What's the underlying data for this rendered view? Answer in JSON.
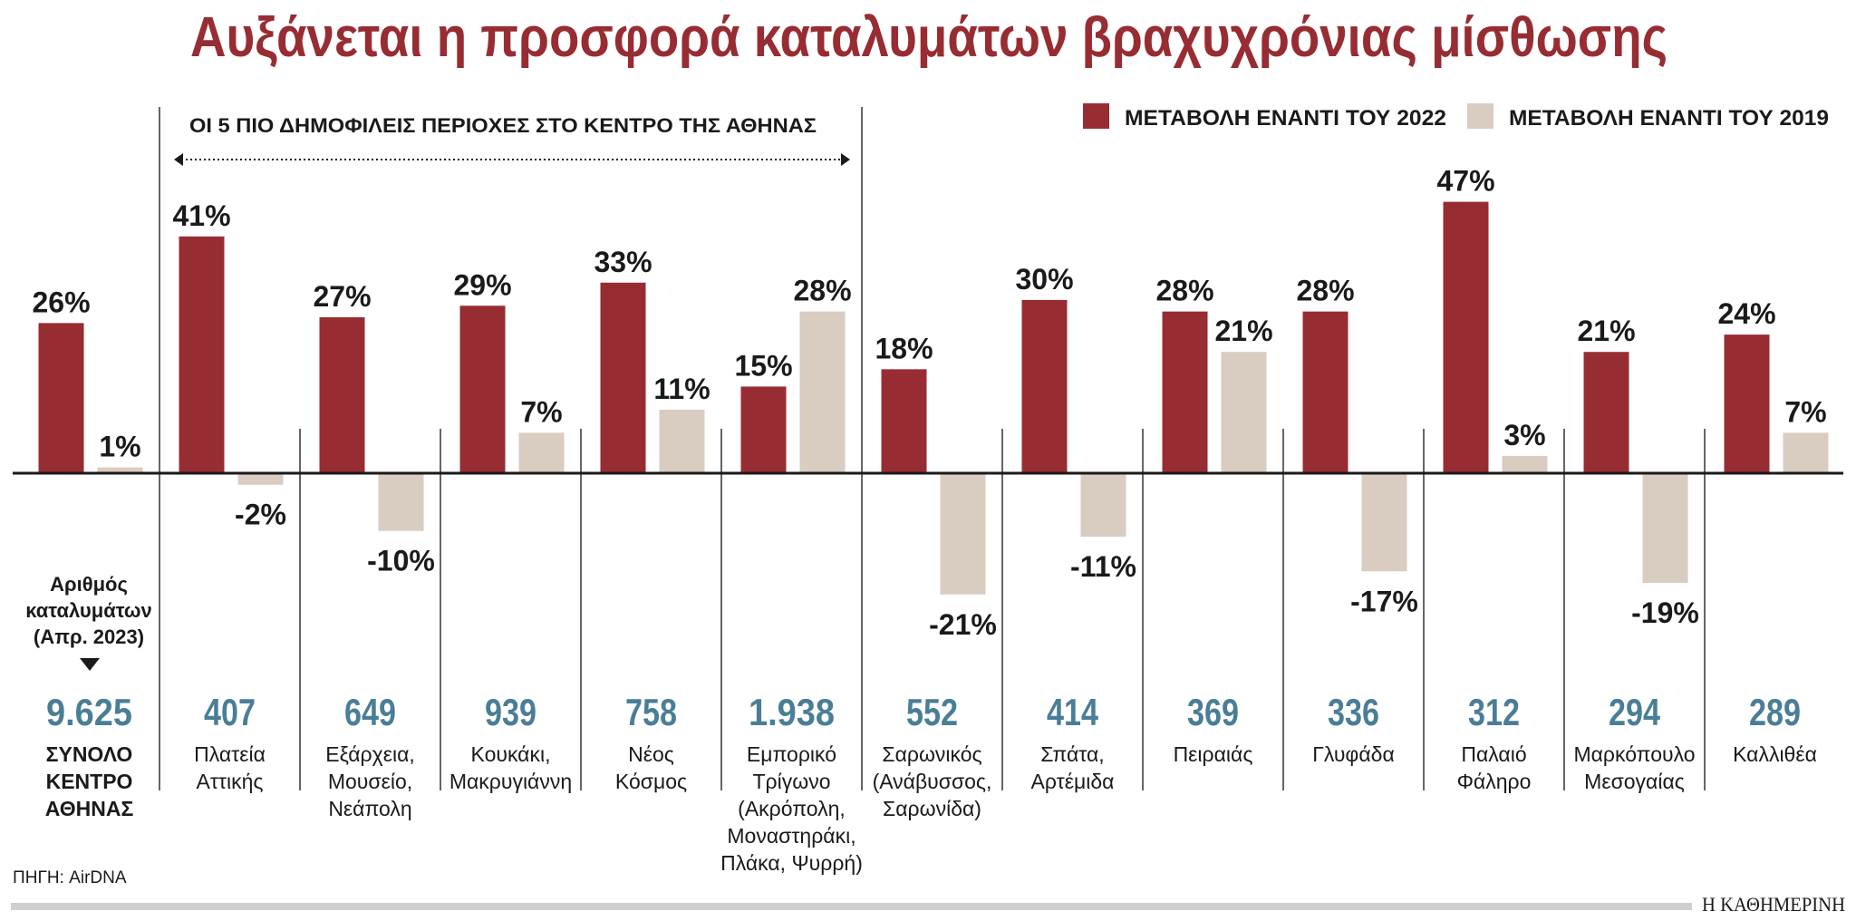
{
  "chart_data": {
    "type": "bar",
    "title": "Αυξάνεται η προσφορά καταλυμάτων βραχυχρόνιας μίσθωσης",
    "group_label": "ΟΙ 5 ΠΙΟ ΔΗΜΟΦΙΛΕΙΣ ΠΕΡΙΟΧΕΣ ΣΤΟ ΚΕΝΤΡΟ ΤΗΣ ΑΘΗΝΑΣ",
    "count_label": [
      "Αριθμός",
      "καταλυμάτων",
      "(Απρ. 2023)"
    ],
    "legend_position": "top-right",
    "grid": false,
    "unit": "%",
    "categories": [
      {
        "name": [
          "ΣΥΝΟΛΟ",
          "ΚΕΝΤΡΟ",
          "ΑΘΗΝΑΣ"
        ],
        "count": "9.625",
        "bold": true
      },
      {
        "name": [
          "Πλατεία",
          "Αττικής"
        ],
        "count": "407"
      },
      {
        "name": [
          "Εξάρχεια,",
          "Μουσείο,",
          "Νεάπολη"
        ],
        "count": "649"
      },
      {
        "name": [
          "Κουκάκι,",
          "Μακρυγιάννη"
        ],
        "count": "939"
      },
      {
        "name": [
          "Νέος",
          "Κόσμος"
        ],
        "count": "758"
      },
      {
        "name": [
          "Εμπορικό",
          "Τρίγωνο",
          "(Ακρόπολη,",
          "Μοναστηράκι,",
          "Πλάκα, Ψυρρή)"
        ],
        "count": "1.938"
      },
      {
        "name": [
          "Σαρωνικός",
          "(Ανάβυσσος,",
          "Σαρωνίδα)"
        ],
        "count": "552"
      },
      {
        "name": [
          "Σπάτα,",
          "Αρτέμιδα"
        ],
        "count": "414"
      },
      {
        "name": [
          "Πειραιάς"
        ],
        "count": "369"
      },
      {
        "name": [
          "Γλυφάδα"
        ],
        "count": "336"
      },
      {
        "name": [
          "Παλαιό",
          "Φάληρο"
        ],
        "count": "312"
      },
      {
        "name": [
          "Μαρκόπουλο",
          "Μεσογαίας"
        ],
        "count": "294"
      },
      {
        "name": [
          "Καλλιθέα"
        ],
        "count": "289"
      }
    ],
    "series": [
      {
        "name": "ΜΕΤΑΒΟΛΗ ΕΝΑΝΤΙ ΤΟΥ 2022",
        "color": "#982c33",
        "values": [
          26,
          41,
          27,
          29,
          33,
          15,
          18,
          30,
          28,
          28,
          47,
          21,
          24
        ]
      },
      {
        "name": "ΜΕΤΑΒΟΛΗ ΕΝΑΝΤΙ ΤΟΥ 2019",
        "color": "#d9ccc0",
        "values": [
          1,
          -2,
          -10,
          7,
          11,
          28,
          -21,
          -11,
          21,
          -17,
          3,
          -19,
          7
        ]
      }
    ],
    "count_color": "#4a7e96",
    "title_color": "#982c33"
  },
  "footer": {
    "source": "ΠΗΓΗ: AirDNA",
    "publisher": "Η ΚΑΘΗΜΕΡΙΝΗ"
  }
}
